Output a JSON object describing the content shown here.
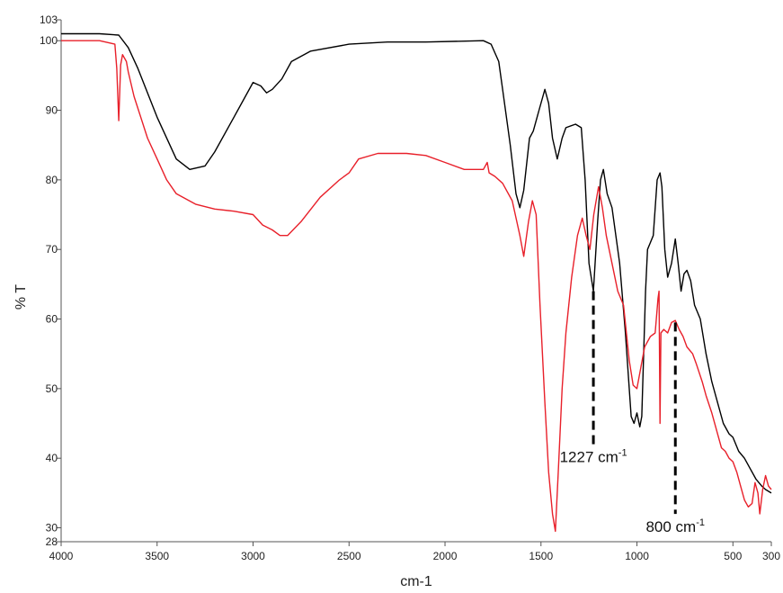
{
  "chart_data": {
    "type": "line",
    "xlabel": "cm-1",
    "ylabel": "% T",
    "xlim": [
      4000,
      300
    ],
    "ylim": [
      28,
      103
    ],
    "x_reversed": true,
    "grid": false,
    "legend": "none",
    "x_ticks": [
      4000,
      3500,
      3000,
      2500,
      2000,
      1500,
      1000,
      500,
      300
    ],
    "y_ticks": [
      28,
      30,
      40,
      50,
      60,
      70,
      80,
      90,
      100,
      103
    ],
    "series": [
      {
        "color": "#000000",
        "points": [
          [
            4000,
            101.0
          ],
          [
            3800,
            101.0
          ],
          [
            3700,
            100.8
          ],
          [
            3650,
            99.0
          ],
          [
            3600,
            96.0
          ],
          [
            3500,
            89.0
          ],
          [
            3400,
            83.0
          ],
          [
            3330,
            81.5
          ],
          [
            3250,
            82.0
          ],
          [
            3200,
            84.0
          ],
          [
            3100,
            89.0
          ],
          [
            3000,
            94.0
          ],
          [
            2960,
            93.5
          ],
          [
            2930,
            92.5
          ],
          [
            2900,
            93.0
          ],
          [
            2850,
            94.5
          ],
          [
            2800,
            97.0
          ],
          [
            2700,
            98.5
          ],
          [
            2500,
            99.5
          ],
          [
            2300,
            99.8
          ],
          [
            2100,
            99.8
          ],
          [
            1800,
            100.0
          ],
          [
            1760,
            99.5
          ],
          [
            1720,
            97.0
          ],
          [
            1700,
            93.0
          ],
          [
            1660,
            85.0
          ],
          [
            1630,
            78.0
          ],
          [
            1610,
            76.0
          ],
          [
            1590,
            78.5
          ],
          [
            1560,
            86.0
          ],
          [
            1540,
            87.0
          ],
          [
            1510,
            90.0
          ],
          [
            1480,
            93.0
          ],
          [
            1460,
            91.0
          ],
          [
            1440,
            86.0
          ],
          [
            1415,
            83.0
          ],
          [
            1390,
            86.0
          ],
          [
            1370,
            87.5
          ],
          [
            1320,
            88.0
          ],
          [
            1290,
            87.5
          ],
          [
            1270,
            80.0
          ],
          [
            1250,
            68.0
          ],
          [
            1227,
            64.0
          ],
          [
            1205,
            74.0
          ],
          [
            1190,
            80.0
          ],
          [
            1175,
            81.5
          ],
          [
            1155,
            78.0
          ],
          [
            1130,
            76.0
          ],
          [
            1090,
            68.0
          ],
          [
            1060,
            58.0
          ],
          [
            1030,
            46.0
          ],
          [
            1015,
            45.0
          ],
          [
            1000,
            46.5
          ],
          [
            985,
            44.5
          ],
          [
            975,
            46.0
          ],
          [
            965,
            55.0
          ],
          [
            955,
            64.0
          ],
          [
            945,
            70.0
          ],
          [
            930,
            71.0
          ],
          [
            915,
            72.0
          ],
          [
            895,
            80.0
          ],
          [
            880,
            81.0
          ],
          [
            870,
            79.0
          ],
          [
            855,
            70.0
          ],
          [
            840,
            66.0
          ],
          [
            820,
            68.0
          ],
          [
            800,
            71.5
          ],
          [
            785,
            68.0
          ],
          [
            770,
            64.0
          ],
          [
            755,
            66.5
          ],
          [
            740,
            67.0
          ],
          [
            720,
            65.5
          ],
          [
            700,
            62.0
          ],
          [
            670,
            60.0
          ],
          [
            640,
            55.0
          ],
          [
            610,
            51.0
          ],
          [
            580,
            48.0
          ],
          [
            550,
            45.0
          ],
          [
            520,
            43.5
          ],
          [
            500,
            43.0
          ],
          [
            470,
            41.0
          ],
          [
            440,
            40.0
          ],
          [
            410,
            38.5
          ],
          [
            380,
            37.0
          ],
          [
            350,
            36.0
          ],
          [
            330,
            35.5
          ],
          [
            300,
            35.0
          ]
        ]
      },
      {
        "color": "#e8202a",
        "points": [
          [
            4000,
            100.0
          ],
          [
            3800,
            100.0
          ],
          [
            3720,
            99.5
          ],
          [
            3710,
            96.0
          ],
          [
            3700,
            88.5
          ],
          [
            3690,
            96.5
          ],
          [
            3680,
            98.0
          ],
          [
            3660,
            97.0
          ],
          [
            3650,
            95.5
          ],
          [
            3620,
            92.0
          ],
          [
            3550,
            86.0
          ],
          [
            3500,
            83.0
          ],
          [
            3450,
            80.0
          ],
          [
            3400,
            78.0
          ],
          [
            3300,
            76.5
          ],
          [
            3200,
            75.8
          ],
          [
            3100,
            75.5
          ],
          [
            3000,
            75.0
          ],
          [
            2950,
            73.5
          ],
          [
            2900,
            72.8
          ],
          [
            2860,
            72.0
          ],
          [
            2820,
            72.0
          ],
          [
            2750,
            74.0
          ],
          [
            2650,
            77.5
          ],
          [
            2550,
            80.0
          ],
          [
            2500,
            81.0
          ],
          [
            2450,
            83.0
          ],
          [
            2350,
            83.8
          ],
          [
            2200,
            83.8
          ],
          [
            2100,
            83.5
          ],
          [
            2000,
            82.5
          ],
          [
            1900,
            81.5
          ],
          [
            1800,
            81.5
          ],
          [
            1780,
            82.5
          ],
          [
            1770,
            81.0
          ],
          [
            1740,
            80.5
          ],
          [
            1700,
            79.5
          ],
          [
            1650,
            77.0
          ],
          [
            1610,
            72.0
          ],
          [
            1590,
            69.0
          ],
          [
            1565,
            74.0
          ],
          [
            1545,
            77.0
          ],
          [
            1525,
            75.0
          ],
          [
            1505,
            62.0
          ],
          [
            1480,
            48.0
          ],
          [
            1460,
            38.0
          ],
          [
            1440,
            32.0
          ],
          [
            1425,
            29.5
          ],
          [
            1410,
            38.0
          ],
          [
            1390,
            50.0
          ],
          [
            1370,
            58.0
          ],
          [
            1340,
            66.0
          ],
          [
            1310,
            72.0
          ],
          [
            1285,
            74.5
          ],
          [
            1265,
            72.0
          ],
          [
            1245,
            70.0
          ],
          [
            1225,
            75.0
          ],
          [
            1200,
            79.0
          ],
          [
            1180,
            76.0
          ],
          [
            1160,
            72.0
          ],
          [
            1130,
            68.0
          ],
          [
            1100,
            64.0
          ],
          [
            1070,
            62.0
          ],
          [
            1040,
            54.0
          ],
          [
            1020,
            50.5
          ],
          [
            1000,
            50.0
          ],
          [
            980,
            53.0
          ],
          [
            960,
            56.0
          ],
          [
            930,
            57.5
          ],
          [
            905,
            58.0
          ],
          [
            890,
            63.0
          ],
          [
            885,
            64.0
          ],
          [
            880,
            45.0
          ],
          [
            875,
            58.0
          ],
          [
            860,
            58.5
          ],
          [
            840,
            58.0
          ],
          [
            820,
            59.5
          ],
          [
            800,
            59.8
          ],
          [
            780,
            58.5
          ],
          [
            760,
            57.5
          ],
          [
            740,
            56.0
          ],
          [
            710,
            55.0
          ],
          [
            690,
            53.5
          ],
          [
            660,
            51.0
          ],
          [
            640,
            49.0
          ],
          [
            610,
            46.5
          ],
          [
            580,
            43.5
          ],
          [
            560,
            41.5
          ],
          [
            540,
            41.0
          ],
          [
            520,
            40.0
          ],
          [
            500,
            39.5
          ],
          [
            480,
            38.0
          ],
          [
            460,
            36.0
          ],
          [
            440,
            34.0
          ],
          [
            420,
            33.0
          ],
          [
            400,
            33.5
          ],
          [
            385,
            36.5
          ],
          [
            370,
            35.0
          ],
          [
            360,
            32.0
          ],
          [
            345,
            35.5
          ],
          [
            330,
            37.5
          ],
          [
            315,
            36.0
          ],
          [
            300,
            35.5
          ]
        ]
      }
    ],
    "annotations": [
      {
        "x": 1227,
        "y_from": 64,
        "y_to": 42,
        "text": "1227 cm",
        "sup": "-1"
      },
      {
        "x": 800,
        "y_from": 59.5,
        "y_to": 32,
        "text": "800 cm",
        "sup": "-1"
      }
    ]
  }
}
